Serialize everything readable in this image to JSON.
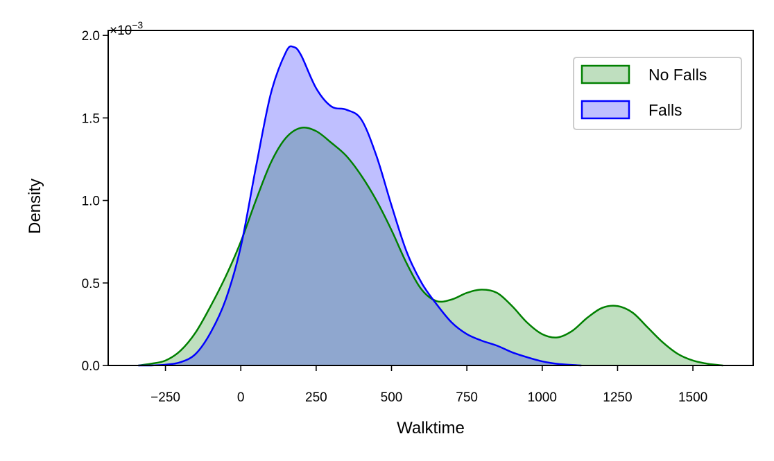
{
  "chart_data": {
    "type": "area",
    "xlabel": "Walktime",
    "ylabel": "Density",
    "y_offset_base": "×10",
    "y_offset_exponent": "−3",
    "xlim": [
      -440,
      1700
    ],
    "ylim": [
      0,
      2.03
    ],
    "x_ticks": [
      -250,
      0,
      250,
      500,
      750,
      1000,
      1250,
      1500
    ],
    "x_tick_labels": [
      "−250",
      "0",
      "250",
      "500",
      "750",
      "1000",
      "1250",
      "1500"
    ],
    "y_ticks": [
      0,
      0.5,
      1.0,
      1.5,
      2.0
    ],
    "y_tick_labels": [
      "0.0",
      "0.5",
      "1.0",
      "1.5",
      "2.0"
    ],
    "legend_position": "upper-right",
    "grid": false,
    "series": [
      {
        "name": "No Falls",
        "line_color": "#008000",
        "fill_color": "#008000",
        "fill_opacity": 0.25,
        "x": [
          -340,
          -300,
          -250,
          -200,
          -150,
          -100,
          -50,
          0,
          50,
          100,
          150,
          200,
          250,
          300,
          350,
          400,
          450,
          500,
          550,
          600,
          650,
          700,
          750,
          800,
          850,
          900,
          950,
          1000,
          1050,
          1100,
          1150,
          1200,
          1250,
          1300,
          1350,
          1400,
          1450,
          1500,
          1550,
          1600
        ],
        "y": [
          0.0,
          0.01,
          0.03,
          0.09,
          0.2,
          0.36,
          0.54,
          0.75,
          1.0,
          1.23,
          1.38,
          1.44,
          1.42,
          1.35,
          1.27,
          1.15,
          1.0,
          0.82,
          0.62,
          0.46,
          0.39,
          0.4,
          0.44,
          0.46,
          0.44,
          0.36,
          0.26,
          0.19,
          0.17,
          0.21,
          0.29,
          0.35,
          0.36,
          0.32,
          0.23,
          0.14,
          0.07,
          0.03,
          0.01,
          0.0
        ]
      },
      {
        "name": "Falls",
        "line_color": "#0000ff",
        "fill_color": "#0000ff",
        "fill_opacity": 0.25,
        "x": [
          -340,
          -300,
          -250,
          -200,
          -150,
          -100,
          -50,
          0,
          50,
          100,
          150,
          175,
          200,
          250,
          300,
          350,
          400,
          450,
          500,
          550,
          600,
          650,
          700,
          750,
          800,
          850,
          900,
          950,
          1000,
          1050,
          1100,
          1130
        ],
        "y": [
          0.0,
          0.0,
          0.005,
          0.02,
          0.07,
          0.2,
          0.4,
          0.72,
          1.2,
          1.65,
          1.9,
          1.93,
          1.88,
          1.68,
          1.57,
          1.55,
          1.49,
          1.27,
          0.97,
          0.69,
          0.5,
          0.37,
          0.26,
          0.19,
          0.15,
          0.12,
          0.08,
          0.05,
          0.025,
          0.01,
          0.003,
          0.0
        ]
      }
    ]
  }
}
